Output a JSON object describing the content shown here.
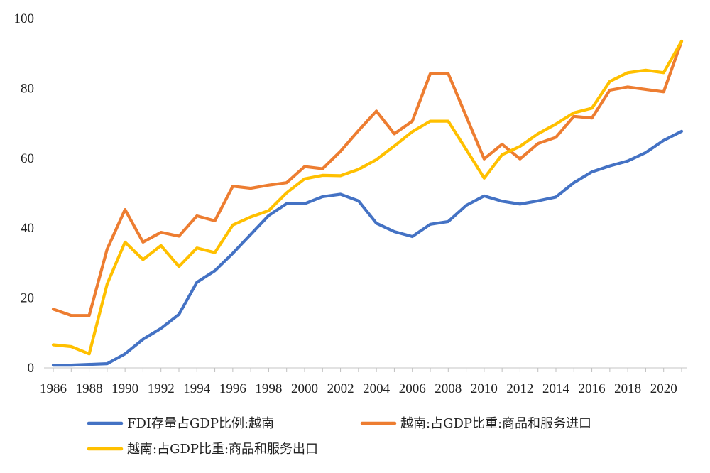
{
  "chart_data": {
    "type": "line",
    "title": "",
    "xlabel": "",
    "ylabel": "",
    "xlim": [
      1986,
      2021
    ],
    "ylim": [
      0,
      100
    ],
    "grid": false,
    "legend_position": "bottom",
    "y_ticks": [
      0,
      20,
      40,
      60,
      80,
      100
    ],
    "x_ticks": [
      1986,
      1988,
      1990,
      1992,
      1994,
      1996,
      1998,
      2000,
      2002,
      2004,
      2006,
      2008,
      2010,
      2012,
      2014,
      2016,
      2018,
      2020
    ],
    "x": [
      1986,
      1987,
      1988,
      1989,
      1990,
      1991,
      1992,
      1993,
      1994,
      1995,
      1996,
      1997,
      1998,
      1999,
      2000,
      2001,
      2002,
      2003,
      2004,
      2005,
      2006,
      2007,
      2008,
      2009,
      2010,
      2011,
      2012,
      2013,
      2014,
      2015,
      2016,
      2017,
      2018,
      2019,
      2020,
      2021
    ],
    "series": [
      {
        "name": "FDI存量占GDP比例:越南",
        "color": "#4472C4",
        "values": [
          0.8,
          0.8,
          1.0,
          1.2,
          4.0,
          8.2,
          11.3,
          15.3,
          24.5,
          27.8,
          32.8,
          38.2,
          43.6,
          47.0,
          47.0,
          49.0,
          49.7,
          47.8,
          41.4,
          39.0,
          37.6,
          41.1,
          41.9,
          46.5,
          49.2,
          47.7,
          46.9,
          47.8,
          48.9,
          53.0,
          56.1,
          57.8,
          59.2,
          61.6,
          65.1,
          67.7
        ]
      },
      {
        "name": "越南:占GDP比重:商品和服务进口",
        "color": "#ED7D31",
        "values": [
          16.8,
          15.0,
          15.0,
          34.0,
          45.3,
          36.0,
          38.8,
          37.7,
          43.5,
          42.1,
          52.0,
          51.4,
          52.3,
          53.0,
          57.6,
          57.0,
          62.0,
          67.9,
          73.5,
          67.0,
          70.6,
          84.2,
          84.2,
          72.0,
          59.8,
          64.0,
          59.8,
          64.2,
          66.0,
          72.0,
          71.5,
          79.5,
          80.4,
          79.7,
          79.0,
          93.5
        ]
      },
      {
        "name": "越南:占GDP比重:商品和服务出口",
        "color": "#FFC000",
        "values": [
          6.6,
          6.1,
          4.0,
          24.0,
          36.0,
          31.0,
          35.0,
          29.0,
          34.3,
          33.0,
          40.9,
          43.2,
          45.0,
          50.1,
          54.1,
          55.1,
          55.0,
          56.8,
          59.6,
          63.5,
          67.6,
          70.6,
          70.6,
          62.5,
          54.3,
          61.0,
          63.4,
          67.0,
          69.8,
          73.0,
          74.3,
          82.0,
          84.5,
          85.2,
          84.5,
          93.5
        ]
      }
    ]
  }
}
